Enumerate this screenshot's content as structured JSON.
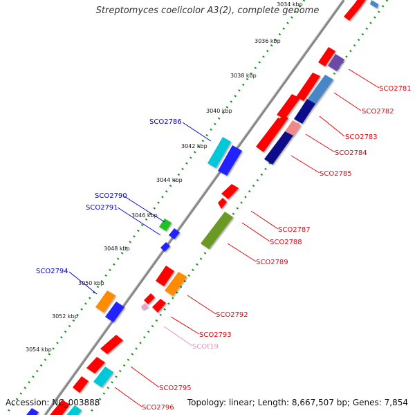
{
  "title": "Streptomyces coelicolor A3(2), complete genome",
  "accession_text": "Accession: NC_003888",
  "stats_text": "Topology: linear; Length: 8,667,507 bp; Genes: 7,854",
  "colors": {
    "backbone": "#7f7f7f",
    "dots": "#1a8f1a",
    "label_red": "#e8000b",
    "label_blue": "#0000cc",
    "label_pink": "#f28fbf"
  },
  "tick_labels": [
    "3034 kbp",
    "3036 kbp",
    "3038 kbp",
    "3040 kbp",
    "3042 kbp",
    "3044 kbp",
    "3046 kbp",
    "3048 kbp",
    "3050 kbp",
    "3052 kbp",
    "3054 kbp"
  ],
  "gene_labels": {
    "right": [
      "SCO2781",
      "SCO2782",
      "SCO2783",
      "SCO2784",
      "SCO2785",
      "SCO2787",
      "SCO2788",
      "SCO2789",
      "SCO2792",
      "SCO2793",
      "SCOt19",
      "SCO2795",
      "SCO2796"
    ],
    "left": [
      "SCO2786",
      "SCO2790",
      "SCO2791",
      "SCO2794"
    ]
  },
  "feature_colors": [
    "#ff0000",
    "#4a86c8",
    "#6a4aa8",
    "#0a0a8a",
    "#f08888",
    "#00c8d8",
    "#2020ff",
    "#20c020",
    "#6a9a20",
    "#ff8c00",
    "#f0a0d0"
  ]
}
